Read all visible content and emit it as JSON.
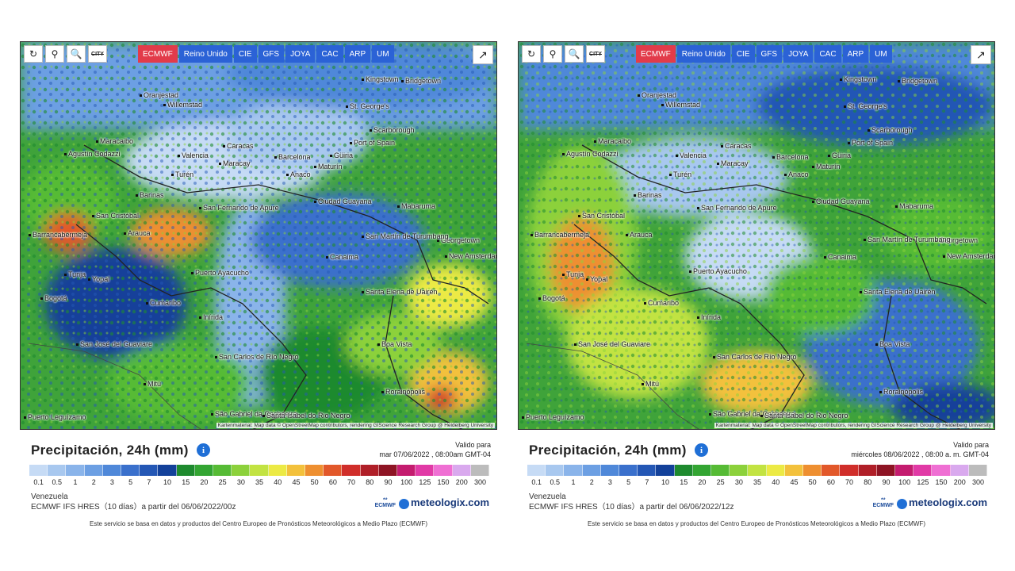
{
  "toolbar": {
    "buttons": [
      "refresh-icon",
      "location-pin-icon",
      "zoom-icon",
      "city-icon"
    ],
    "city_label": "CITY",
    "models": [
      "ECMWF",
      "Reino Unido",
      "CIE",
      "GFS",
      "JOYA",
      "CAC",
      "ARP",
      "UM"
    ],
    "active_model": "ECMWF"
  },
  "colors": {
    "active_tab": "#e23b4a",
    "tab": "#2b62d6",
    "info": "#1f6fd6"
  },
  "legend": {
    "title": "Precipitación, 24h (mm)",
    "ticks": [
      "0.1",
      "0.5",
      "1",
      "2",
      "3",
      "5",
      "7",
      "10",
      "15",
      "20",
      "25",
      "30",
      "35",
      "40",
      "45",
      "50",
      "60",
      "70",
      "80",
      "90",
      "100",
      "125",
      "150",
      "200",
      "300"
    ],
    "colors": [
      "#c6dbf5",
      "#a8c8ef",
      "#8ab4ea",
      "#6c9fe3",
      "#4f88d9",
      "#3a70cc",
      "#2457b5",
      "#13419a",
      "#1e8a2e",
      "#33a532",
      "#56bb35",
      "#8cd13b",
      "#c2e342",
      "#ecea45",
      "#f3c13c",
      "#ee8f30",
      "#e2582a",
      "#d02e2a",
      "#b01f28",
      "#8e1424",
      "#c41c6f",
      "#e13aa6",
      "#ef6fd3",
      "#d9a9ee",
      "#bcbcbc"
    ]
  },
  "places": [
    "Oranjestad",
    "Willemstad",
    "Kingstown",
    "Bridgetown",
    "St. George's",
    "Scarborough",
    "Port of Spain",
    "Maracaibo",
    "Valencia",
    "Caracas",
    "Maracay",
    "Barcelona",
    "Güiria",
    "Agustín Codazzi",
    "Maturín",
    "Anaco",
    "Turén",
    "Barinas",
    "Ciudad Guayana",
    "Mabaruma",
    "San Fernando de Apure",
    "San Cristóbal",
    "Georgetown",
    "Arauca",
    "San Martín de Turumbang",
    "New Amsterdam",
    "Barrancabermeja",
    "Canaima",
    "Tunja",
    "Yopal",
    "Puerto Ayacucho",
    "Bogotá",
    "Santa Elena de Uairén",
    "Cumaribo",
    "Inírida",
    "San José del Guaviare",
    "Boa Vista",
    "San Carlos de Río Negro",
    "Mitú",
    "Rorainópolis",
    "São Gabriel da Cachoeira",
    "Santa Isabel do Rio Negro",
    "Puerto Leguízamo",
    "Lethem",
    "Castries"
  ],
  "attribution": "Kartenmaterial: Map data © OpenStreetMap contributors, rendering GIScience Research Group @ Heidelberg University",
  "attribution_short": "Kartenmaterial: Map data © OpenStreetMap contributors, rendering GIScience Research Group @ Heidelberg University",
  "footer": "Este servicio se basa en datos y productos del Centro Europeo de Pronósticos Meteorológicos a Medio Plazo (ECMWF)",
  "logo": {
    "ecmwf": "ECMWF",
    "meteologix": "meteologix.com"
  },
  "left": {
    "valid_label": "Valido para",
    "valid_date": "mar 07/06/2022 , 08:00am GMT-04",
    "region": "Venezuela",
    "run": "ECMWF IFS HRES（10 días）a partir del 06/06/2022/00z"
  },
  "right": {
    "valid_label": "Valido para",
    "valid_date": "miércoles 08/06/2022 , 08:00 a. m. GMT-04",
    "region": "Venezuela",
    "run": "ECMWF IFS HRES（10 días）a partir del 06/06/2022/12z"
  }
}
